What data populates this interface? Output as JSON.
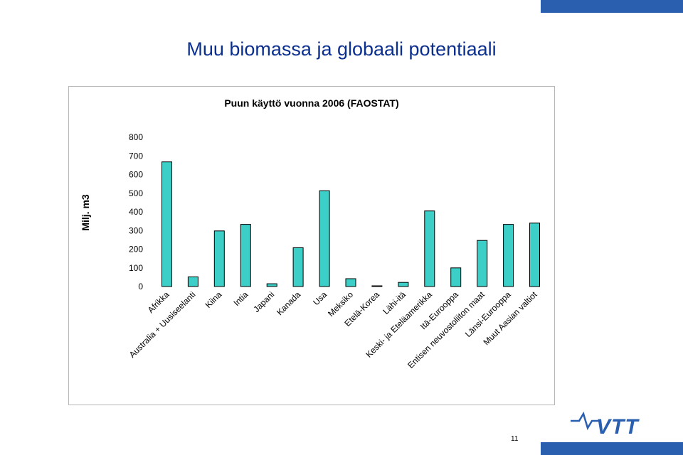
{
  "slide": {
    "title": "Muu biomassa ja globaali potentiaali",
    "page_number": "11",
    "logo_text": "VTT"
  },
  "colors": {
    "title": "#0b2f8f",
    "bar_fill": "#3ccfc7",
    "bar_stroke": "#000000",
    "accent_blue": "#2a5fb0"
  },
  "chart_data": {
    "type": "bar",
    "title": "Puun käyttö vuonna 2006 (FAOSTAT)",
    "ylabel": "Milj. m3",
    "xlabel": "",
    "ylim": [
      0,
      800
    ],
    "yticks": [
      0,
      100,
      200,
      300,
      400,
      500,
      600,
      700,
      800
    ],
    "grid": false,
    "categories": [
      "Afrikka",
      "Australia + Uusiseelanti",
      "Kiina",
      "Intia",
      "Japani",
      "Kanada",
      "Usa",
      "Meksiko",
      "Etelä-Korea",
      "Lähi-itä",
      "Keski- ja Eteläamerikka",
      "Itä-Eurooppa",
      "Entisen neuvostoliiton maat",
      "Länsi-Eurooppa",
      "Muut Aasian valtiot"
    ],
    "values": [
      668,
      52,
      298,
      333,
      15,
      208,
      513,
      42,
      3,
      22,
      405,
      100,
      247,
      333,
      340
    ]
  }
}
